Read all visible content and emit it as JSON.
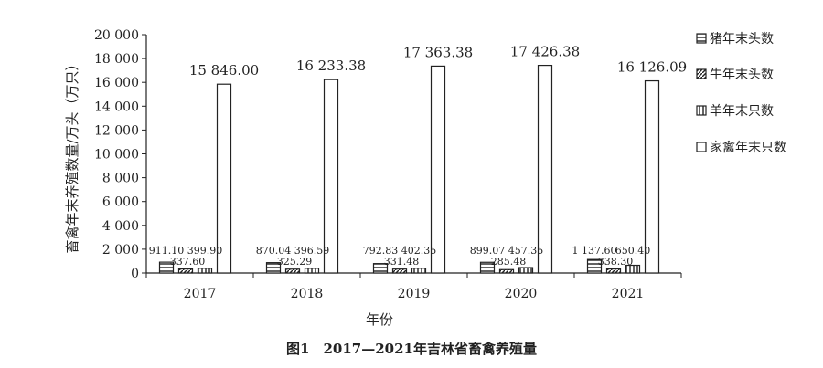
{
  "chart_data": {
    "type": "bar",
    "categories": [
      "2017",
      "2018",
      "2019",
      "2020",
      "2021"
    ],
    "series": [
      {
        "name": "猪年末头数",
        "values": [
          911.1,
          870.04,
          792.83,
          899.07,
          1137.6
        ],
        "labels": [
          "911.10",
          "870.04",
          "792.83",
          "899.07",
          "1 137.60"
        ],
        "pattern": "h-stripes"
      },
      {
        "name": "牛年末头数",
        "values": [
          337.6,
          325.29,
          331.48,
          285.48,
          338.3
        ],
        "labels": [
          "337.60",
          "325.29",
          "331.48",
          "285.48",
          "338.30"
        ],
        "pattern": "diagonal"
      },
      {
        "name": "羊年末只数",
        "values": [
          399.9,
          396.59,
          402.35,
          457.35,
          650.4
        ],
        "labels": [
          "399.90",
          "396.59",
          "402.35",
          "457.35",
          "650.40"
        ],
        "pattern": "v-stripes"
      },
      {
        "name": "家禽年末只数",
        "values": [
          15846.0,
          16233.38,
          17363.38,
          17426.38,
          16126.09
        ],
        "labels": [
          "15 846.00",
          "16 233.38",
          "17 363.38",
          "17 426.38",
          "16 126.09"
        ],
        "pattern": "none"
      }
    ],
    "yticks": [
      0,
      2000,
      4000,
      6000,
      8000,
      10000,
      12000,
      14000,
      16000,
      18000,
      20000
    ],
    "ytick_labels": [
      "0",
      "2 000",
      "4 000",
      "6 000",
      "8 000",
      "10 000",
      "12 000",
      "14 000",
      "16 000",
      "18 000",
      "20 000"
    ],
    "ylim": [
      0,
      20000
    ],
    "xlabel": "年份",
    "ylabel": "畜禽年末养殖数量/万头（万只）",
    "title": "图1　2017—2021年吉林省畜禽养殖量",
    "legend_position": "right",
    "grid": false
  }
}
